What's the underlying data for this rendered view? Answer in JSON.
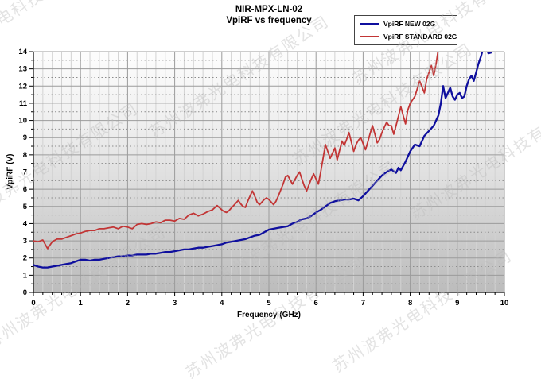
{
  "watermark": {
    "text": "苏州波弗光电科技有限公司"
  },
  "chart_data": {
    "type": "line",
    "title": "NIR-MPX-LN-02",
    "subtitle": "VpiRF vs frequency",
    "xlabel": "Frequency (GHz)",
    "ylabel": "VpiRF (V)",
    "xlim": [
      0,
      10
    ],
    "ylim": [
      0,
      14
    ],
    "xticks": [
      0,
      1,
      2,
      3,
      4,
      5,
      6,
      7,
      8,
      9,
      10
    ],
    "yticks": [
      0,
      1,
      2,
      3,
      4,
      5,
      6,
      7,
      8,
      9,
      10,
      11,
      12,
      13,
      14
    ],
    "grid": {
      "x_minor_step": 0.2,
      "y_minor_step": 0.5,
      "y_minor_style": "dotted",
      "major_style": "solid"
    },
    "legend_position": "top-right",
    "plot_background": {
      "top": "#fdfdfd",
      "mid": "#eeeeee",
      "bottom": "#bcbcbc"
    },
    "series": [
      {
        "name": "VpiRF NEW 02G",
        "color": "#0f0f9e",
        "width": 2.3,
        "segments": [
          [
            [
              0,
              1.6
            ],
            [
              0.1,
              1.5
            ],
            [
              0.2,
              1.45
            ],
            [
              0.3,
              1.45
            ],
            [
              0.4,
              1.5
            ],
            [
              0.5,
              1.55
            ],
            [
              0.6,
              1.6
            ],
            [
              0.7,
              1.65
            ],
            [
              0.8,
              1.7
            ],
            [
              0.9,
              1.8
            ],
            [
              1,
              1.9
            ],
            [
              1.1,
              1.9
            ],
            [
              1.2,
              1.85
            ],
            [
              1.3,
              1.9
            ],
            [
              1.4,
              1.9
            ],
            [
              1.5,
              1.95
            ],
            [
              1.6,
              2
            ],
            [
              1.7,
              2.05
            ],
            [
              1.8,
              2.1
            ],
            [
              1.9,
              2.1
            ],
            [
              2,
              2.15
            ],
            [
              2.1,
              2.15
            ],
            [
              2.2,
              2.2
            ],
            [
              2.3,
              2.2
            ],
            [
              2.4,
              2.2
            ],
            [
              2.5,
              2.25
            ],
            [
              2.6,
              2.25
            ],
            [
              2.7,
              2.3
            ],
            [
              2.8,
              2.35
            ],
            [
              2.9,
              2.35
            ],
            [
              3,
              2.4
            ],
            [
              3.1,
              2.45
            ],
            [
              3.2,
              2.5
            ],
            [
              3.3,
              2.5
            ],
            [
              3.4,
              2.55
            ],
            [
              3.5,
              2.6
            ],
            [
              3.6,
              2.6
            ],
            [
              3.7,
              2.65
            ],
            [
              3.8,
              2.7
            ],
            [
              3.9,
              2.75
            ],
            [
              4,
              2.8
            ],
            [
              4.1,
              2.9
            ],
            [
              4.2,
              2.95
            ],
            [
              4.3,
              3
            ],
            [
              4.4,
              3.05
            ],
            [
              4.5,
              3.1
            ],
            [
              4.6,
              3.2
            ],
            [
              4.7,
              3.3
            ],
            [
              4.8,
              3.35
            ],
            [
              4.9,
              3.5
            ],
            [
              5,
              3.65
            ],
            [
              5.1,
              3.7
            ],
            [
              5.2,
              3.75
            ],
            [
              5.3,
              3.8
            ],
            [
              5.4,
              3.85
            ],
            [
              5.5,
              4
            ],
            [
              5.6,
              4.1
            ],
            [
              5.7,
              4.25
            ],
            [
              5.8,
              4.3
            ],
            [
              5.9,
              4.45
            ],
            [
              6,
              4.65
            ],
            [
              6.1,
              4.8
            ],
            [
              6.2,
              5
            ],
            [
              6.3,
              5.2
            ],
            [
              6.4,
              5.3
            ],
            [
              6.5,
              5.35
            ],
            [
              6.6,
              5.4
            ],
            [
              6.7,
              5.4
            ],
            [
              6.8,
              5.45
            ],
            [
              6.9,
              5.35
            ],
            [
              7,
              5.6
            ],
            [
              7.1,
              5.9
            ],
            [
              7.2,
              6.2
            ],
            [
              7.3,
              6.5
            ],
            [
              7.4,
              6.8
            ],
            [
              7.5,
              7
            ],
            [
              7.6,
              7.15
            ],
            [
              7.7,
              6.95
            ],
            [
              7.75,
              7.25
            ],
            [
              7.8,
              7.1
            ],
            [
              7.9,
              7.6
            ],
            [
              8,
              8.2
            ],
            [
              8.1,
              8.6
            ],
            [
              8.2,
              8.5
            ],
            [
              8.3,
              9.1
            ],
            [
              8.4,
              9.4
            ],
            [
              8.5,
              9.7
            ],
            [
              8.6,
              10.3
            ],
            [
              8.65,
              11
            ],
            [
              8.7,
              12
            ],
            [
              8.75,
              11.3
            ],
            [
              8.8,
              11.6
            ],
            [
              8.85,
              11.9
            ],
            [
              8.9,
              11.4
            ],
            [
              8.95,
              11.2
            ],
            [
              9,
              11.5
            ],
            [
              9.05,
              11.6
            ],
            [
              9.1,
              11.3
            ],
            [
              9.15,
              11.4
            ],
            [
              9.2,
              12
            ],
            [
              9.25,
              12.4
            ],
            [
              9.3,
              12.6
            ],
            [
              9.35,
              12.3
            ],
            [
              9.4,
              12.8
            ],
            [
              9.45,
              13.3
            ],
            [
              9.5,
              13.7
            ],
            [
              9.55,
              14.2
            ]
          ],
          [
            [
              9.62,
              14.2
            ],
            [
              9.66,
              13.9
            ],
            [
              9.72,
              13.95
            ],
            [
              9.75,
              14.2
            ]
          ]
        ]
      },
      {
        "name": "VpiRF STANDARD 02G",
        "color": "#c23535",
        "width": 1.8,
        "segments": [
          [
            [
              0,
              3
            ],
            [
              0.1,
              2.95
            ],
            [
              0.2,
              3.05
            ],
            [
              0.3,
              2.55
            ],
            [
              0.4,
              2.95
            ],
            [
              0.5,
              3.1
            ],
            [
              0.6,
              3.1
            ],
            [
              0.7,
              3.2
            ],
            [
              0.8,
              3.3
            ],
            [
              0.9,
              3.4
            ],
            [
              1,
              3.45
            ],
            [
              1.1,
              3.55
            ],
            [
              1.2,
              3.6
            ],
            [
              1.3,
              3.6
            ],
            [
              1.4,
              3.7
            ],
            [
              1.5,
              3.7
            ],
            [
              1.6,
              3.75
            ],
            [
              1.7,
              3.8
            ],
            [
              1.8,
              3.7
            ],
            [
              1.9,
              3.85
            ],
            [
              2,
              3.8
            ],
            [
              2.1,
              3.7
            ],
            [
              2.2,
              3.95
            ],
            [
              2.3,
              4
            ],
            [
              2.4,
              3.95
            ],
            [
              2.5,
              4
            ],
            [
              2.6,
              4.1
            ],
            [
              2.7,
              4.05
            ],
            [
              2.8,
              4.2
            ],
            [
              2.9,
              4.2
            ],
            [
              3,
              4.15
            ],
            [
              3.1,
              4.3
            ],
            [
              3.2,
              4.25
            ],
            [
              3.3,
              4.5
            ],
            [
              3.4,
              4.6
            ],
            [
              3.5,
              4.45
            ],
            [
              3.6,
              4.55
            ],
            [
              3.7,
              4.7
            ],
            [
              3.8,
              4.8
            ],
            [
              3.9,
              5.05
            ],
            [
              4,
              4.8
            ],
            [
              4.05,
              4.7
            ],
            [
              4.1,
              4.65
            ],
            [
              4.15,
              4.75
            ],
            [
              4.2,
              4.9
            ],
            [
              4.25,
              5.05
            ],
            [
              4.3,
              5.2
            ],
            [
              4.35,
              5.35
            ],
            [
              4.4,
              5.15
            ],
            [
              4.45,
              5
            ],
            [
              4.5,
              4.95
            ],
            [
              4.55,
              5.3
            ],
            [
              4.6,
              5.6
            ],
            [
              4.65,
              5.9
            ],
            [
              4.7,
              5.6
            ],
            [
              4.75,
              5.25
            ],
            [
              4.8,
              5.1
            ],
            [
              4.85,
              5.25
            ],
            [
              4.9,
              5.4
            ],
            [
              4.95,
              5.5
            ],
            [
              5,
              5.4
            ],
            [
              5.05,
              5.25
            ],
            [
              5.1,
              5.1
            ],
            [
              5.15,
              5.3
            ],
            [
              5.2,
              5.6
            ],
            [
              5.25,
              5.95
            ],
            [
              5.3,
              6.3
            ],
            [
              5.35,
              6.7
            ],
            [
              5.4,
              6.8
            ],
            [
              5.45,
              6.55
            ],
            [
              5.5,
              6.3
            ],
            [
              5.55,
              6.55
            ],
            [
              5.6,
              6.8
            ],
            [
              5.65,
              7
            ],
            [
              5.7,
              6.6
            ],
            [
              5.75,
              6.2
            ],
            [
              5.8,
              5.9
            ],
            [
              5.85,
              6.25
            ],
            [
              5.9,
              6.6
            ],
            [
              5.95,
              6.9
            ],
            [
              6,
              6.6
            ],
            [
              6.05,
              6.3
            ],
            [
              6.1,
              7
            ],
            [
              6.15,
              7.8
            ],
            [
              6.2,
              8.6
            ],
            [
              6.25,
              8.2
            ],
            [
              6.3,
              7.8
            ],
            [
              6.35,
              8.1
            ],
            [
              6.4,
              8.4
            ],
            [
              6.45,
              7.7
            ],
            [
              6.5,
              8.25
            ],
            [
              6.55,
              8.8
            ],
            [
              6.6,
              8.55
            ],
            [
              6.65,
              8.9
            ],
            [
              6.7,
              9.3
            ],
            [
              6.75,
              8.75
            ],
            [
              6.8,
              8.2
            ],
            [
              6.85,
              8.6
            ],
            [
              6.9,
              8.85
            ],
            [
              6.95,
              9
            ],
            [
              7,
              8.65
            ],
            [
              7.05,
              8.3
            ],
            [
              7.1,
              8.75
            ],
            [
              7.15,
              9.25
            ],
            [
              7.2,
              9.7
            ],
            [
              7.25,
              9.2
            ],
            [
              7.3,
              8.7
            ],
            [
              7.35,
              8.9
            ],
            [
              7.4,
              9.3
            ],
            [
              7.45,
              9.6
            ],
            [
              7.5,
              9.9
            ],
            [
              7.55,
              9.7
            ],
            [
              7.6,
              9.7
            ],
            [
              7.65,
              9.2
            ],
            [
              7.7,
              9.7
            ],
            [
              7.75,
              10.25
            ],
            [
              7.8,
              10.8
            ],
            [
              7.85,
              10.3
            ],
            [
              7.9,
              9.8
            ],
            [
              7.95,
              10.6
            ],
            [
              8,
              11
            ],
            [
              8.05,
              11.2
            ],
            [
              8.1,
              11.4
            ],
            [
              8.15,
              11.85
            ],
            [
              8.2,
              12.3
            ],
            [
              8.25,
              11.95
            ],
            [
              8.3,
              11.6
            ],
            [
              8.35,
              12.4
            ],
            [
              8.4,
              12.8
            ],
            [
              8.45,
              13.2
            ],
            [
              8.5,
              12.6
            ],
            [
              8.55,
              13.3
            ],
            [
              8.6,
              14.2
            ]
          ]
        ]
      }
    ]
  }
}
